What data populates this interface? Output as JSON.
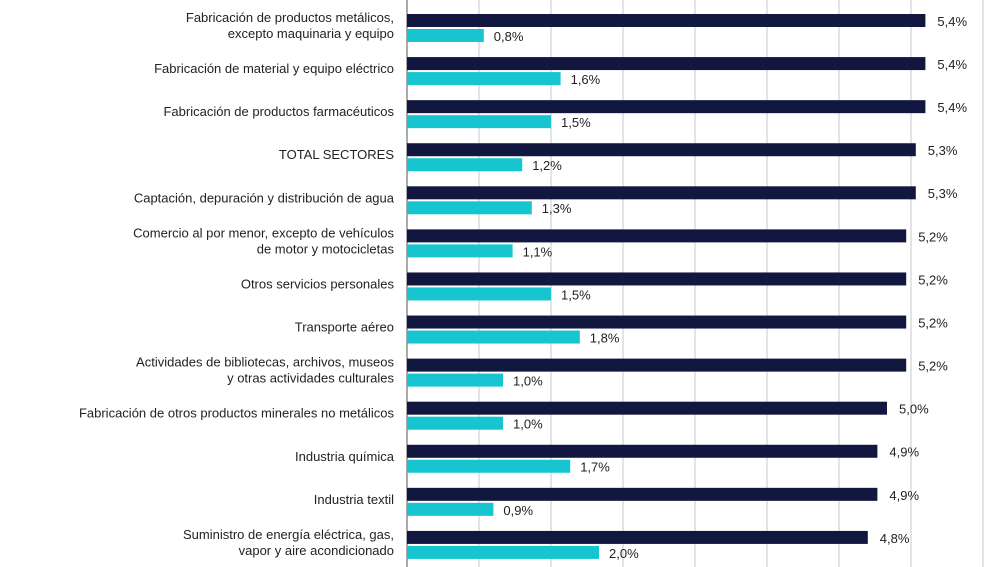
{
  "chart_data": {
    "type": "bar",
    "orientation": "horizontal",
    "categories": [
      "Fabricación de productos metálicos,\nexcepto maquinaria y equipo",
      "Fabricación de material y equipo eléctrico",
      "Fabricación de productos farmacéuticos",
      "TOTAL SECTORES",
      "Captación, depuración y distribución de agua",
      "Comercio al por menor, excepto de vehículos\nde motor y motocicletas",
      "Otros servicios personales",
      "Transporte aéreo",
      "Actividades de bibliotecas, archivos, museos\ny otras actividades culturales",
      "Fabricación de otros productos minerales no metálicos",
      "Industria química",
      "Industria textil",
      "Suministro de energía eléctrica, gas,\nvapor y aire acondicionado"
    ],
    "series": [
      {
        "color": "#12173f",
        "values": [
          5.4,
          5.4,
          5.4,
          5.3,
          5.3,
          5.2,
          5.2,
          5.2,
          5.2,
          5.0,
          4.9,
          4.9,
          4.8
        ],
        "value_labels": [
          "5,4%",
          "5,4%",
          "5,4%",
          "5,3%",
          "5,3%",
          "5,2%",
          "5,2%",
          "5,2%",
          "5,2%",
          "5,0%",
          "4,9%",
          "4,9%",
          "4,8%"
        ]
      },
      {
        "color": "#16c5d0",
        "values": [
          0.8,
          1.6,
          1.5,
          1.2,
          1.3,
          1.1,
          1.5,
          1.8,
          1.0,
          1.0,
          1.7,
          0.9,
          2.0
        ],
        "value_labels": [
          "0,8%",
          "1,6%",
          "1,5%",
          "1,2%",
          "1,3%",
          "1,1%",
          "1,5%",
          "1,8%",
          "1,0%",
          "1,0%",
          "1,7%",
          "0,9%",
          "2,0%"
        ]
      }
    ],
    "xlim": [
      0,
      6
    ],
    "xticks": [
      0,
      0.75,
      1.5,
      2.25,
      3,
      3.75,
      4.5,
      5.25,
      6
    ],
    "grid": true
  }
}
